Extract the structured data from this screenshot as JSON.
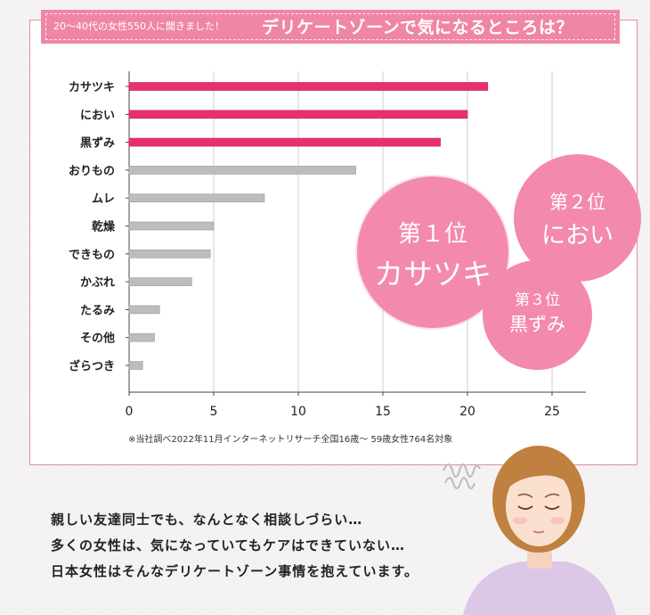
{
  "header": {
    "sub_label": "20〜40代の女性550人に聞きました！",
    "main_label": "デリケートゾーンで気になるところは？"
  },
  "chart_data": {
    "type": "bar",
    "orientation": "horizontal",
    "categories": [
      "カサツキ",
      "におい",
      "黒ずみ",
      "おりもの",
      "ムレ",
      "乾燥",
      "できもの",
      "かぶれ",
      "たるみ",
      "その他",
      "ざらつき"
    ],
    "values": [
      21.2,
      20.0,
      18.4,
      13.4,
      8.0,
      5.0,
      4.8,
      3.7,
      1.8,
      1.5,
      0.8
    ],
    "highlight_count": 3,
    "xlim": [
      0,
      27
    ],
    "xticks": [
      "0",
      "5",
      "10",
      "15",
      "20",
      "25"
    ],
    "xtick_values": [
      0,
      5,
      10,
      15,
      20,
      25
    ],
    "grid": "vertical",
    "colors": {
      "highlight": "#e8306f",
      "normal": "#bdbdbd",
      "grid": "#cfcfcf"
    }
  },
  "source_note": "※当社調べ2022年11月インターネットリサーチ全国16歳〜 59歳女性764名対象",
  "rankings": [
    {
      "rank_label": "第１位",
      "name": "カサツキ"
    },
    {
      "rank_label": "第２位",
      "name": "におい"
    },
    {
      "rank_label": "第３位",
      "name": "黒ずみ"
    }
  ],
  "caption": {
    "line1": "親しい友達同士でも、なんとなく相談しづらい…",
    "line2": "多くの女性は、気になっていてもケアはできていない…",
    "line3": "日本女性はそんなデリケートゾーン事情を抱えています。"
  },
  "colors": {
    "accent": "#ef86a4",
    "circle": "#f38aab"
  }
}
